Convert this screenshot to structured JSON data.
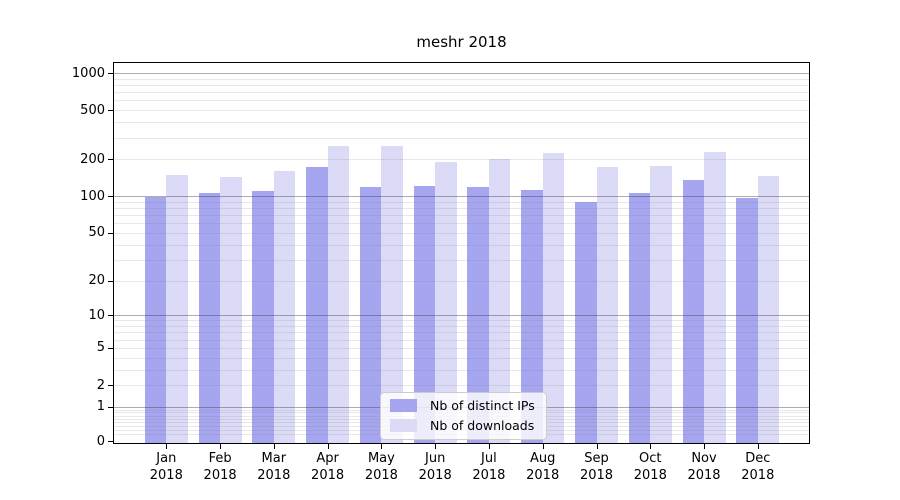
{
  "chart_data": {
    "type": "bar",
    "title": "meshr 2018",
    "categories": [
      "Jan",
      "Feb",
      "Mar",
      "Apr",
      "May",
      "Jun",
      "Jul",
      "Aug",
      "Sep",
      "Oct",
      "Nov",
      "Dec"
    ],
    "category_year": "2018",
    "series": [
      {
        "name": "Nb of distinct IPs",
        "color": "#a5a5f0",
        "values": [
          99,
          107,
          111,
          174,
          119,
          121,
          120,
          112,
          90,
          107,
          135,
          97
        ]
      },
      {
        "name": "Nb of downloads",
        "color": "#dbdbf7",
        "values": [
          148,
          144,
          160,
          255,
          255,
          189,
          200,
          225,
          174,
          177,
          231,
          146
        ]
      }
    ],
    "y_axis": {
      "scale": "log1p",
      "tick_labels": [
        1000,
        500,
        200,
        100,
        50,
        20,
        10,
        5,
        2,
        1,
        0
      ],
      "ylim": [
        0,
        1230
      ],
      "major_gridlines_at": [
        1,
        10,
        100,
        1000
      ],
      "minor_gridlines": "2-9 per decade"
    },
    "xlabel": "",
    "ylabel": "",
    "legend": {
      "position": "lower center"
    }
  },
  "colors": {
    "background": "#ffffff",
    "spine": "#000000",
    "text": "#000000",
    "grid_major": "#9d9d9d",
    "grid_minor": "#ececec",
    "legend_border": "#cccccc"
  }
}
